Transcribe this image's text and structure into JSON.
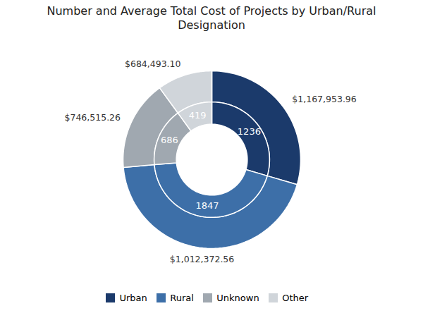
{
  "chart_data": {
    "type": "pie",
    "title": "Number and Average Total Cost of Projects by Urban/Rural\nDesignation",
    "categories": [
      "Urban",
      "Rural",
      "Unknown",
      "Other"
    ],
    "values": [
      1236,
      1847,
      686,
      419
    ],
    "colors": [
      "#1b3a6b",
      "#3d6fa8",
      "#a0a8b0",
      "#d0d5da"
    ],
    "data_labels": true,
    "avg_costs": {
      "values": [
        1167953.96,
        1012372.56,
        746515.26,
        684493.1
      ],
      "value_labels": [
        "$1,167,953.96",
        "$1,012,372.56",
        "$746,515.26",
        "$684,493.10"
      ]
    },
    "legend": "bottom"
  }
}
